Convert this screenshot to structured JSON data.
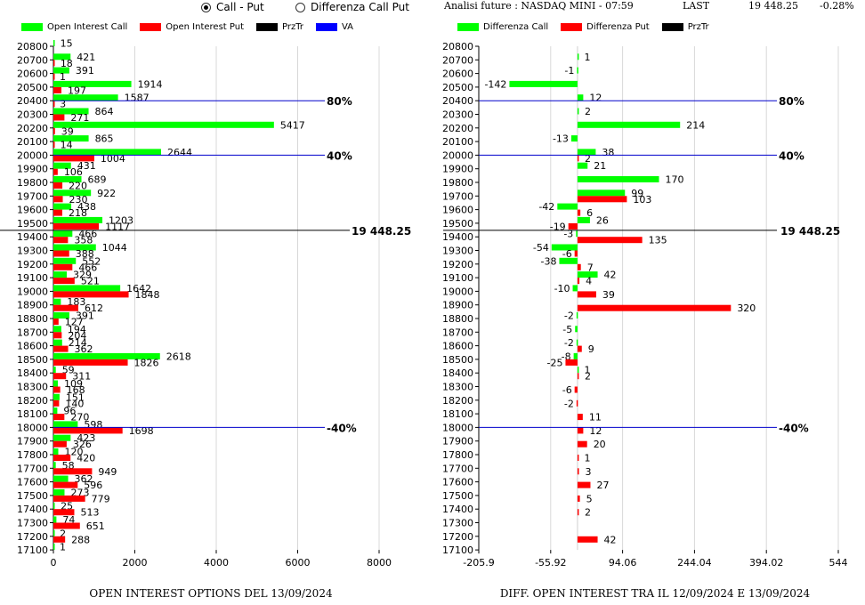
{
  "header": {
    "radio_call_put": "Call - Put",
    "radio_diff": "Differenza Call Put",
    "radio_selected": "call_put",
    "analysis": "Analisi future : NASDAQ MINI - 07:59",
    "last_label": "LAST",
    "last_value": "19 448.25",
    "last_change": "-0.28%"
  },
  "legend_left": [
    {
      "label": "Open Interest Call",
      "color": "#00ff00"
    },
    {
      "label": "Open Interest Put",
      "color": "#ff0000"
    },
    {
      "label": "PrzTr",
      "color": "#000000"
    },
    {
      "label": "VA",
      "color": "#0000ff"
    }
  ],
  "legend_right": [
    {
      "label": "Differenza Call",
      "color": "#00ff00"
    },
    {
      "label": "Differenza Put",
      "color": "#ff0000"
    },
    {
      "label": "PrzTr",
      "color": "#000000"
    }
  ],
  "captions": {
    "left": "OPEN INTEREST OPTIONS DEL 13/09/2024",
    "right": "DIFF. OPEN INTEREST TRA IL 12/09/2024 E 13/09/2024"
  },
  "chart_data": [
    {
      "type": "bar",
      "orientation": "horizontal",
      "categories": [
        "20800",
        "20700",
        "20600",
        "20500",
        "20400",
        "20300",
        "20200",
        "20100",
        "20000",
        "19900",
        "19800",
        "19700",
        "19600",
        "19500",
        "19400",
        "19300",
        "19200",
        "19100",
        "19000",
        "18900",
        "18800",
        "18700",
        "18600",
        "18500",
        "18400",
        "18300",
        "18200",
        "18100",
        "18000",
        "17900",
        "17800",
        "17700",
        "17600",
        "17500",
        "17400",
        "17300",
        "17200",
        "17100"
      ],
      "series": [
        {
          "name": "Open Interest Call",
          "color": "#00ff00",
          "values": [
            15,
            421,
            391,
            1914,
            1587,
            864,
            5417,
            865,
            2644,
            431,
            689,
            922,
            438,
            1203,
            466,
            1044,
            552,
            329,
            1642,
            183,
            391,
            194,
            214,
            2618,
            59,
            109,
            151,
            96,
            598,
            423,
            120,
            58,
            362,
            273,
            25,
            74,
            2,
            1
          ]
        },
        {
          "name": "Open Interest Put",
          "color": "#ff0000",
          "values": [
            null,
            18,
            1,
            197,
            3,
            271,
            39,
            14,
            1004,
            106,
            220,
            230,
            218,
            1117,
            358,
            388,
            466,
            521,
            1848,
            612,
            127,
            204,
            362,
            1826,
            311,
            168,
            140,
            270,
            1698,
            326,
            420,
            949,
            596,
            779,
            513,
            651,
            288,
            null
          ]
        }
      ],
      "x_ticks": [
        "0",
        "2000",
        "4000",
        "6000",
        "8000"
      ],
      "xlim": [
        0,
        8000
      ],
      "grid": "vertical",
      "reference_lines": [
        {
          "label": "80%",
          "at": "20400",
          "color": "#0000cc"
        },
        {
          "label": "40%",
          "at": "20000",
          "color": "#0000cc"
        },
        {
          "label": "19 448.25",
          "at": "19448.25",
          "color": "#000000"
        },
        {
          "label": "-40%",
          "at": "18000",
          "color": "#0000cc"
        }
      ]
    },
    {
      "type": "bar",
      "orientation": "horizontal",
      "categories": [
        "20800",
        "20700",
        "20600",
        "20500",
        "20400",
        "20300",
        "20200",
        "20100",
        "20000",
        "19900",
        "19800",
        "19700",
        "19600",
        "19500",
        "19400",
        "19300",
        "19200",
        "19100",
        "19000",
        "18900",
        "18800",
        "18700",
        "18600",
        "18500",
        "18400",
        "18300",
        "18200",
        "18100",
        "18000",
        "17900",
        "17800",
        "17700",
        "17600",
        "17500",
        "17400",
        "17300",
        "17200",
        "17100"
      ],
      "series": [
        {
          "name": "Differenza Call",
          "color": "#00ff00",
          "values": [
            null,
            1,
            -1,
            -142,
            12,
            2,
            214,
            -13,
            38,
            21,
            170,
            99,
            -42,
            26,
            -3,
            -54,
            -38,
            42,
            -10,
            null,
            -2,
            -5,
            -2,
            -8,
            1,
            null,
            null,
            null,
            null,
            null,
            null,
            null,
            null,
            null,
            null,
            null,
            null,
            null
          ]
        },
        {
          "name": "Differenza Put",
          "color": "#ff0000",
          "values": [
            null,
            null,
            null,
            null,
            null,
            null,
            null,
            null,
            2,
            null,
            null,
            103,
            6,
            -19,
            135,
            -6,
            7,
            4,
            39,
            320,
            null,
            null,
            9,
            -25,
            2,
            -6,
            -2,
            11,
            12,
            20,
            1,
            3,
            27,
            5,
            2,
            null,
            42,
            null
          ]
        }
      ],
      "x_ticks": [
        "-205.9",
        "-55.92",
        "94.06",
        "244.04",
        "394.02",
        "544"
      ],
      "xlim": [
        -205.9,
        544
      ],
      "grid": "vertical",
      "reference_lines": [
        {
          "label": "80%",
          "at": "20400",
          "color": "#0000cc"
        },
        {
          "label": "40%",
          "at": "20000",
          "color": "#0000cc"
        },
        {
          "label": "19 448.25",
          "at": "19448.25",
          "color": "#000000"
        },
        {
          "label": "-40%",
          "at": "18000",
          "color": "#0000cc"
        }
      ]
    }
  ]
}
